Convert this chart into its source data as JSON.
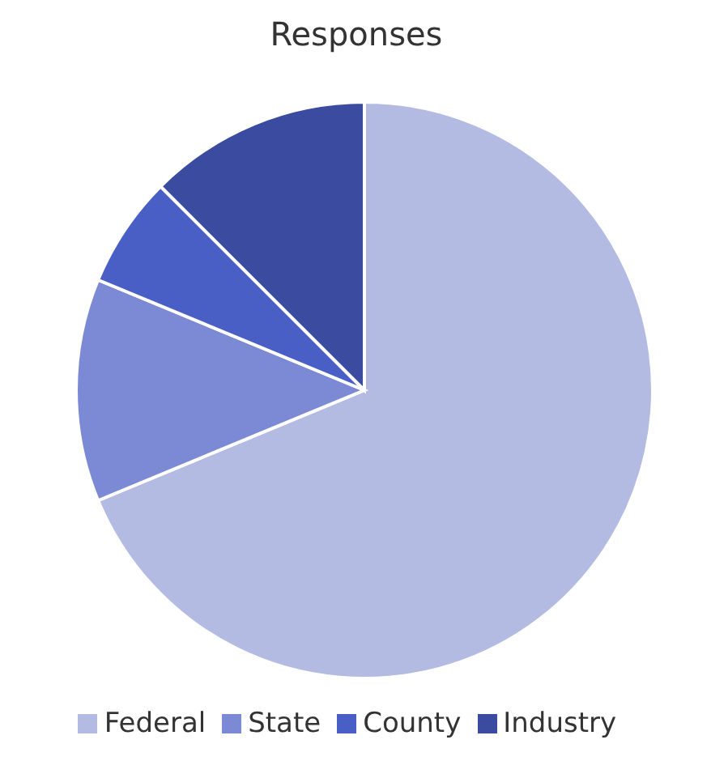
{
  "chart_data": {
    "type": "pie",
    "title": "Responses",
    "categories": [
      "Federal",
      "State",
      "County",
      "Industry"
    ],
    "values": [
      68.75,
      12.5,
      6.25,
      12.5
    ],
    "colors": [
      "#b4bbe3",
      "#7c89d4",
      "#4a5fc6",
      "#3a4ba0"
    ],
    "legend": "bottom"
  }
}
